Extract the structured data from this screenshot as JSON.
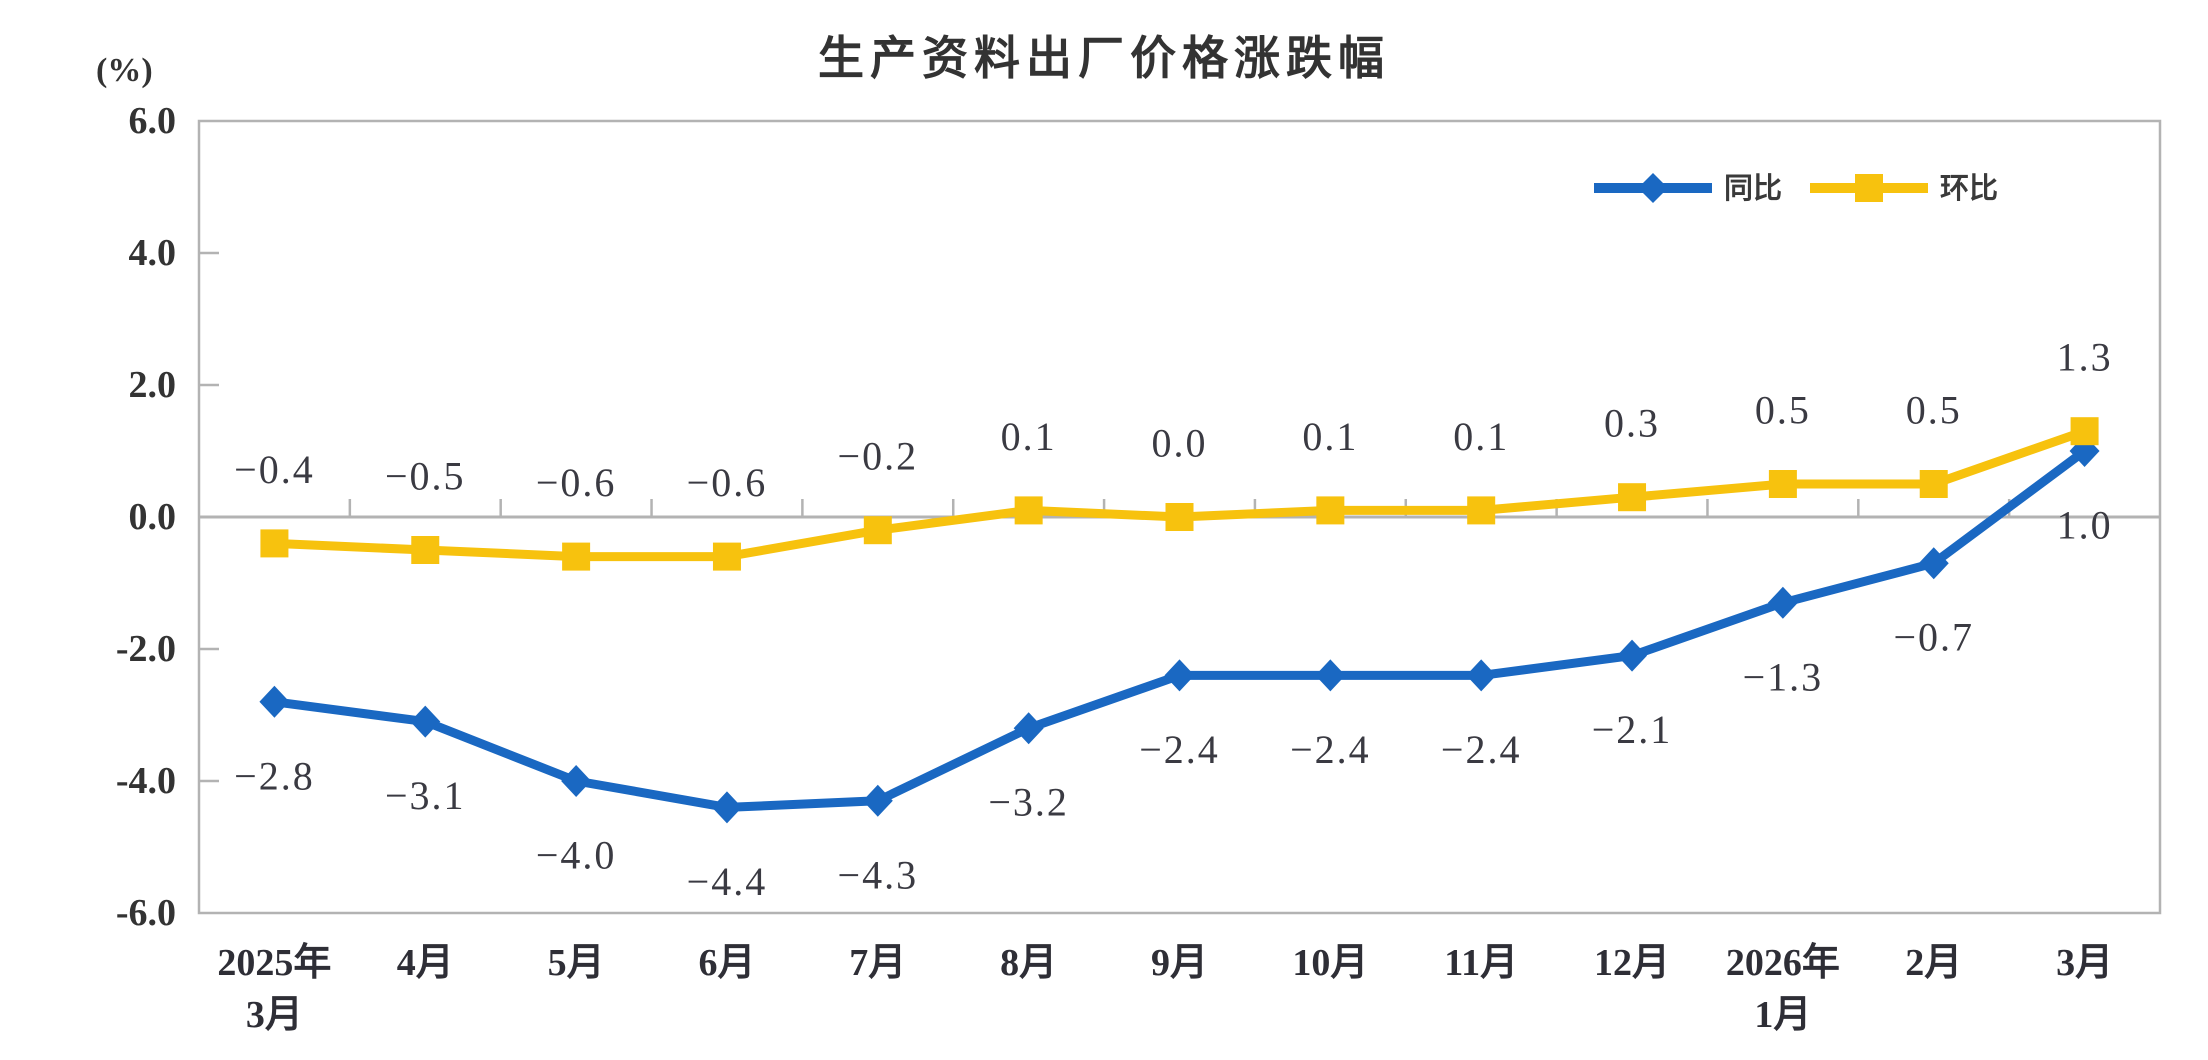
{
  "chart_data": {
    "type": "line",
    "title": "生产资料出厂价格涨跌幅",
    "unit_label": "(%)",
    "categories": [
      [
        "2025年",
        "3月"
      ],
      [
        "4月"
      ],
      [
        "5月"
      ],
      [
        "6月"
      ],
      [
        "7月"
      ],
      [
        "8月"
      ],
      [
        "9月"
      ],
      [
        "10月"
      ],
      [
        "11月"
      ],
      [
        "12月"
      ],
      [
        "2026年",
        "1月"
      ],
      [
        "2月"
      ],
      [
        "3月"
      ]
    ],
    "series": [
      {
        "name": "同比",
        "color": "#1A68C2",
        "marker": "diamond",
        "label_position": "below",
        "values": [
          -2.8,
          -3.1,
          -4.0,
          -4.4,
          -4.3,
          -3.2,
          -2.4,
          -2.4,
          -2.4,
          -2.1,
          -1.3,
          -0.7,
          1.0
        ]
      },
      {
        "name": "环比",
        "color": "#F7C20E",
        "marker": "square",
        "label_position": "above",
        "values": [
          -0.4,
          -0.5,
          -0.6,
          -0.6,
          -0.2,
          0.1,
          0.0,
          0.1,
          0.1,
          0.3,
          0.5,
          0.5,
          1.3
        ]
      }
    ],
    "ylim": [
      -6.0,
      6.0
    ],
    "ytick_labels": [
      "6.0",
      "4.0",
      "2.0",
      "0.0",
      "-2.0",
      "-4.0",
      "-6.0"
    ],
    "legend_position": "top-right",
    "grid": false,
    "axis_color": "#b3b3b3",
    "text_color": "#333333",
    "label_color": "#3a3a42"
  }
}
